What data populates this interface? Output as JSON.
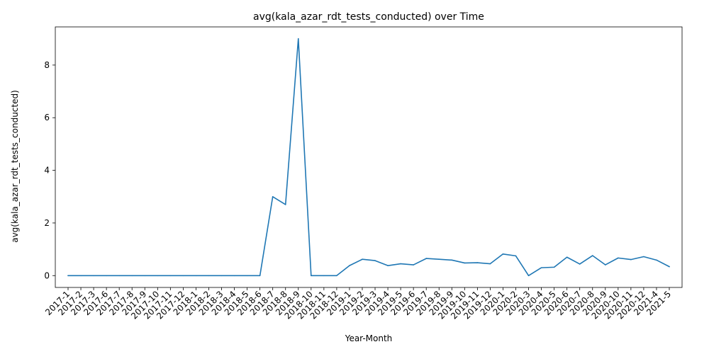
{
  "chart_data": {
    "type": "line",
    "title": "avg(kala_azar_rdt_tests_conducted) over Time",
    "xlabel": "Year-Month",
    "ylabel": "avg(kala_azar_rdt_tests_conducted)",
    "ylim": [
      -0.45,
      9.45
    ],
    "yticks": [
      0,
      2,
      4,
      6,
      8
    ],
    "grid": false,
    "line_color": "#1f77b4",
    "categories": [
      "2017-1",
      "2017-2",
      "2017-3",
      "2017-6",
      "2017-7",
      "2017-8",
      "2017-9",
      "2017-10",
      "2017-11",
      "2017-12",
      "2018-1",
      "2018-2",
      "2018-3",
      "2018-4",
      "2018-5",
      "2018-6",
      "2018-7",
      "2018-8",
      "2018-9",
      "2018-10",
      "2018-11",
      "2018-12",
      "2019-1",
      "2019-2",
      "2019-3",
      "2019-4",
      "2019-5",
      "2019-6",
      "2019-7",
      "2019-8",
      "2019-9",
      "2019-10",
      "2019-11",
      "2019-12",
      "2020-1",
      "2020-2",
      "2020-3",
      "2020-4",
      "2020-5",
      "2020-6",
      "2020-7",
      "2020-8",
      "2020-9",
      "2020-10",
      "2020-11",
      "2020-12",
      "2021-4",
      "2021-5"
    ],
    "series": [
      {
        "values": [
          0,
          0,
          0,
          0,
          0,
          0,
          0,
          0,
          0,
          0,
          0,
          0,
          0,
          0,
          0,
          0,
          3.0,
          2.7,
          9.0,
          0,
          0,
          0,
          0.38,
          0.62,
          0.57,
          0.38,
          0.45,
          0.41,
          0.65,
          0.62,
          0.59,
          0.48,
          0.49,
          0.45,
          0.82,
          0.75,
          0,
          0.3,
          0.32,
          0.7,
          0.44,
          0.76,
          0.41,
          0.67,
          0.61,
          0.72,
          0.59,
          0.34
        ]
      }
    ]
  }
}
